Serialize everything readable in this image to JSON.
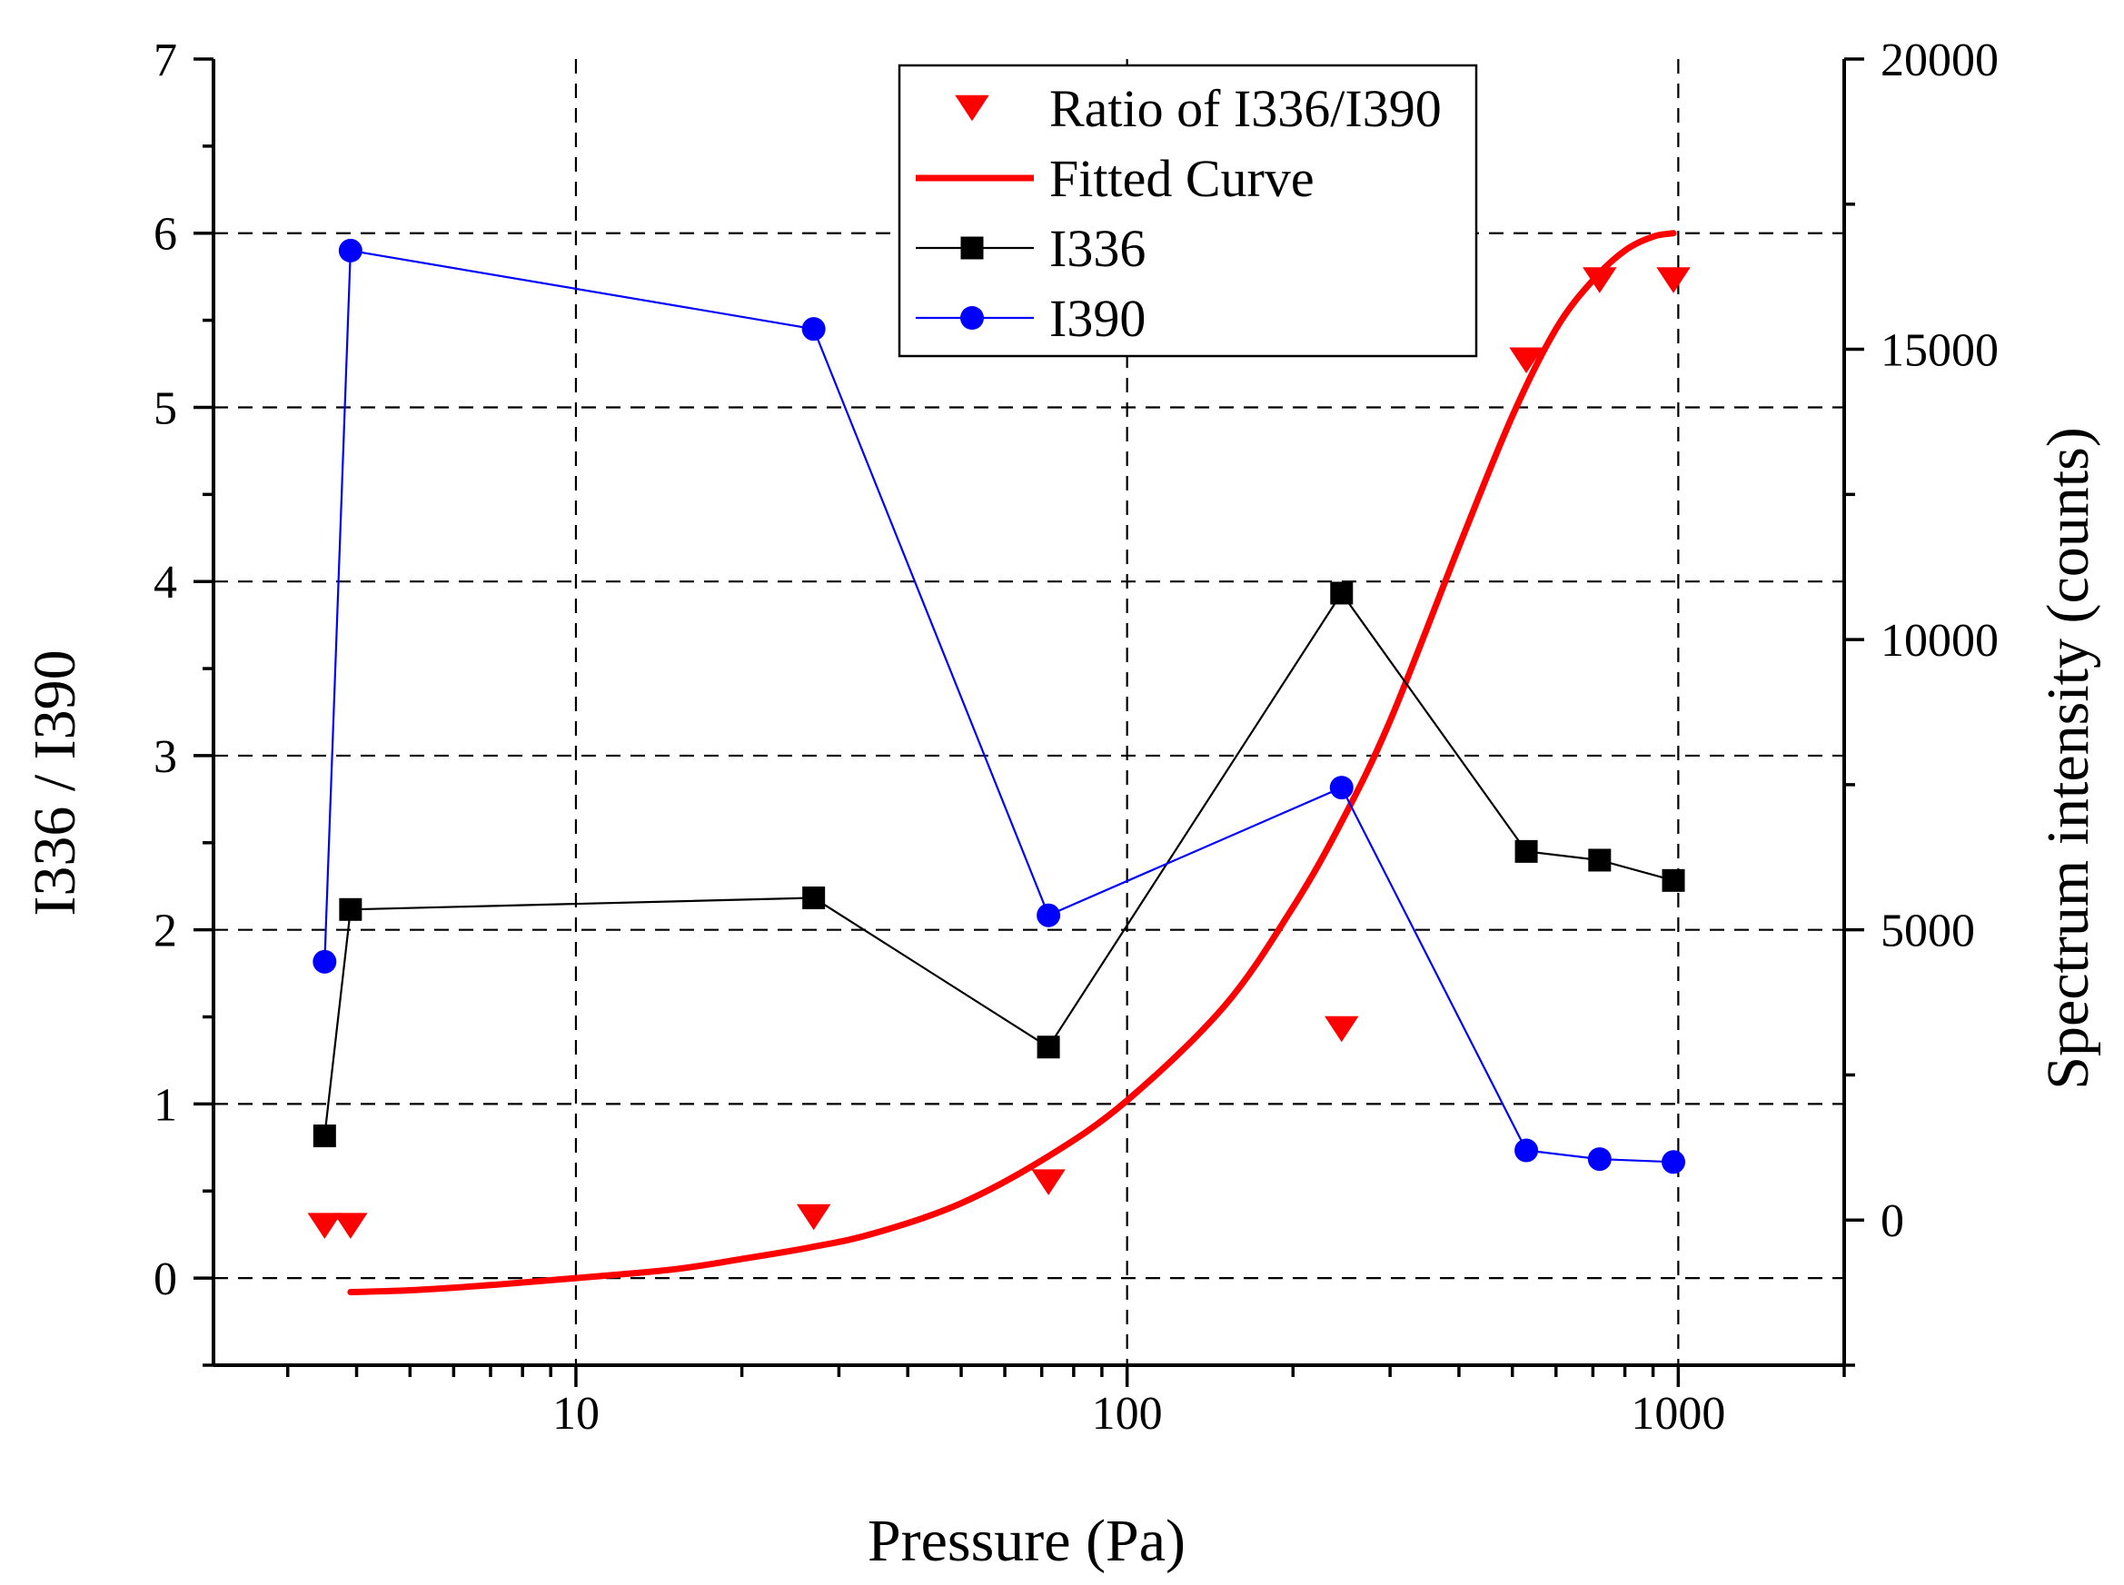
{
  "chart_data": {
    "type": "line",
    "title": "",
    "xlabel": "Pressure (Pa)",
    "ylabel_left": "I336 / I390",
    "ylabel_right": "Spectrum intensity (counts)",
    "x_scale": "log",
    "xlim": [
      2.2,
      2000
    ],
    "ylim_left": [
      -0.5,
      7
    ],
    "ylim_right": [
      -2500,
      20000
    ],
    "x_ticks": [
      10,
      100,
      1000
    ],
    "x_tick_labels": [
      "10",
      "100",
      "1000"
    ],
    "y_left_ticks": [
      0,
      1,
      2,
      3,
      4,
      5,
      6,
      7
    ],
    "y_left_tick_labels": [
      "0",
      "1",
      "2",
      "3",
      "4",
      "5",
      "6",
      "7"
    ],
    "y_right_ticks": [
      0,
      5000,
      10000,
      15000,
      20000
    ],
    "y_right_tick_labels": [
      "0",
      "5000",
      "10000",
      "15000",
      "20000"
    ],
    "grid": true,
    "legend_position": "top-right",
    "series": [
      {
        "name": "Ratio of I336/I390",
        "kind": "scatter",
        "marker": "triangle-down",
        "axis": "left",
        "color": "#ff0000",
        "x": [
          3.5,
          3.9,
          27,
          72,
          245,
          530,
          720,
          980
        ],
        "y": [
          0.3,
          0.3,
          0.35,
          0.55,
          1.43,
          5.27,
          5.73,
          5.73
        ]
      },
      {
        "name": "Fitted Curve",
        "kind": "line",
        "axis": "left",
        "color": "#ff0000",
        "x": [
          3.9,
          5,
          7,
          10,
          15,
          20,
          27,
          35,
          50,
          72,
          100,
          150,
          200,
          245,
          300,
          400,
          500,
          600,
          700,
          800,
          900,
          980
        ],
        "y": [
          -0.08,
          -0.07,
          -0.04,
          0.0,
          0.05,
          0.11,
          0.18,
          0.26,
          0.43,
          0.7,
          1.02,
          1.56,
          2.13,
          2.62,
          3.2,
          4.2,
          4.95,
          5.45,
          5.73,
          5.9,
          5.98,
          6.0
        ]
      },
      {
        "name": "I336",
        "kind": "line+marker",
        "marker": "square",
        "axis": "right",
        "color": "#000000",
        "x": [
          3.5,
          3.9,
          27,
          72,
          245,
          530,
          720,
          980
        ],
        "y": [
          1450,
          5350,
          5550,
          2980,
          10800,
          6350,
          6200,
          5850
        ]
      },
      {
        "name": "I390",
        "kind": "line+marker",
        "marker": "circle",
        "axis": "right",
        "color": "#0000ff",
        "x": [
          3.5,
          3.9,
          27,
          72,
          245,
          530,
          720,
          980
        ],
        "y": [
          4450,
          16700,
          15350,
          5250,
          7450,
          1200,
          1050,
          1000
        ]
      }
    ]
  }
}
